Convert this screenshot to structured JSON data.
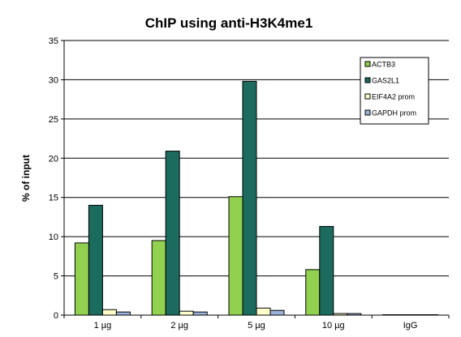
{
  "chart_data": {
    "type": "bar",
    "title": "ChIP using anti-H3K4me1",
    "xlabel": "",
    "ylabel": "% of input",
    "ylim": [
      0,
      35
    ],
    "yticks": [
      0,
      5,
      10,
      15,
      20,
      25,
      30,
      35
    ],
    "grid": true,
    "legend_position": "top-right",
    "categories": [
      "1 µg",
      "2 µg",
      "5 µg",
      "10 µg",
      "IgG"
    ],
    "series": [
      {
        "name": "ACTB3",
        "color": "#92d050",
        "values": [
          9.2,
          9.5,
          15.1,
          5.8,
          0.05
        ]
      },
      {
        "name": "GAS2L1",
        "color": "#1b6b5e",
        "values": [
          14.0,
          20.9,
          29.8,
          11.3,
          0.05
        ]
      },
      {
        "name": "EIF4A2 prom",
        "color": "#ffffcc",
        "values": [
          0.7,
          0.5,
          0.9,
          0.2,
          0.02
        ]
      },
      {
        "name": "GAPDH prom",
        "color": "#9bb3da",
        "values": [
          0.4,
          0.4,
          0.6,
          0.2,
          0.05
        ]
      }
    ]
  }
}
